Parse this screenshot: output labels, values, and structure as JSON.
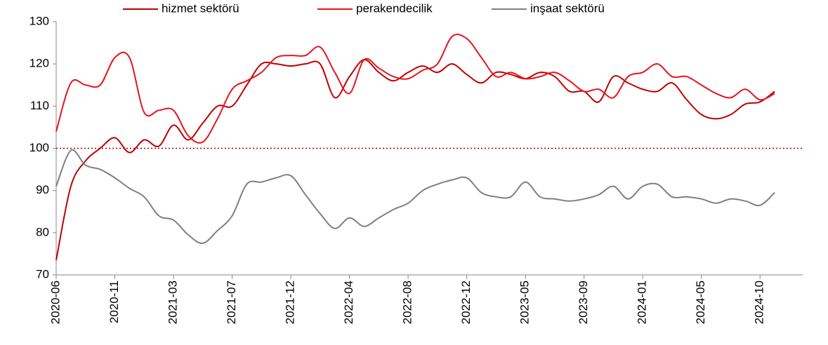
{
  "chart_data": {
    "type": "line",
    "categories": [
      "2020-06",
      null,
      null,
      null,
      "2020-11",
      null,
      null,
      null,
      "2021-03",
      null,
      null,
      null,
      "2021-07",
      null,
      null,
      null,
      "2021-12",
      null,
      null,
      null,
      "2022-04",
      null,
      null,
      null,
      "2022-08",
      null,
      null,
      null,
      "2022-12",
      null,
      null,
      null,
      "2023-05",
      null,
      null,
      null,
      "2023-09",
      null,
      null,
      null,
      "2024-01",
      null,
      null,
      null,
      "2024-05",
      null,
      null,
      null,
      "2024-10",
      null
    ],
    "series": [
      {
        "name": "hizmet sektörü",
        "color": "#c00000",
        "values": [
          73.5,
          91,
          97,
          100,
          102.5,
          99,
          102,
          100.5,
          105.5,
          102,
          106,
          110,
          110,
          115,
          120,
          120,
          119.5,
          120,
          120,
          112,
          117,
          121,
          118,
          116,
          118,
          119.5,
          118,
          120,
          117.5,
          115.5,
          118,
          117.5,
          116.5,
          118,
          117,
          113.5,
          113.5,
          111,
          117,
          115.5,
          114,
          113.5,
          115.5,
          111.5,
          108,
          107,
          108,
          110.5,
          111,
          113.5
        ]
      },
      {
        "name": "perakendecilik",
        "color": "#e8141c",
        "values": [
          104,
          115.5,
          115,
          115,
          121.5,
          121.5,
          108.5,
          109,
          109,
          103,
          101.5,
          107,
          114,
          116,
          118,
          121.5,
          122,
          122,
          124,
          118,
          113,
          121,
          119,
          117,
          116.5,
          118.5,
          120,
          126.5,
          126,
          121.5,
          117,
          118,
          116.5,
          117,
          118,
          116,
          113.5,
          114,
          112,
          117,
          118,
          120,
          117,
          117,
          115,
          113,
          112,
          114,
          111.5,
          113
        ]
      },
      {
        "name": "inşaat sektörü",
        "color": "#7f7f7f",
        "values": [
          91,
          99.5,
          96,
          95,
          93,
          90.5,
          88.5,
          84,
          83,
          79.5,
          77.5,
          80.5,
          84,
          91.5,
          92,
          93,
          93.5,
          89,
          84.5,
          81,
          83.5,
          81.5,
          83.5,
          85.5,
          87,
          90,
          91.5,
          92.5,
          93,
          89.5,
          88.5,
          88.5,
          92,
          88.5,
          88,
          87.5,
          88,
          89,
          91,
          88,
          91,
          91.5,
          88.5,
          88.5,
          88,
          87,
          88,
          87.5,
          86.5,
          89.5
        ]
      }
    ],
    "reference_line": 100,
    "reference_color": "#a00000",
    "ylim": [
      70,
      130
    ],
    "yticks": [
      70,
      80,
      90,
      100,
      110,
      120,
      130
    ],
    "grid": false
  }
}
